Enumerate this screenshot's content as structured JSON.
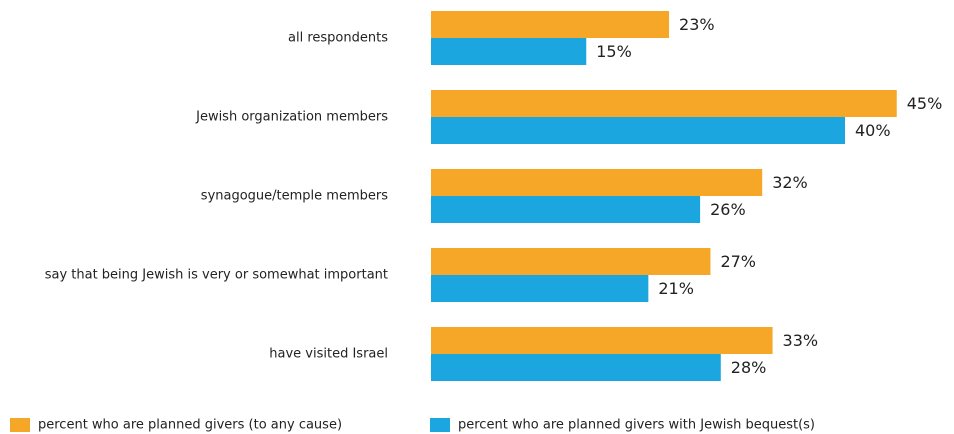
{
  "chart_data": {
    "type": "bar",
    "orientation": "horizontal",
    "categories": [
      "all respondents",
      "Jewish organization members",
      "synagogue/temple members",
      "say that being Jewish is very or somewhat important",
      "have visited Israel"
    ],
    "series": [
      {
        "name": "percent who are planned givers (to any cause)",
        "color": "#f7a727",
        "values": [
          23,
          45,
          32,
          27,
          33
        ],
        "value_labels": [
          "23%",
          "45%",
          "32%",
          "27%",
          "33%"
        ]
      },
      {
        "name": "percent who are planned givers with Jewish bequest(s)",
        "color": "#1ba6e0",
        "values": [
          15,
          40,
          26,
          21,
          28
        ],
        "value_labels": [
          "15%",
          "40%",
          "26%",
          "21%",
          "28%"
        ]
      }
    ]
  }
}
